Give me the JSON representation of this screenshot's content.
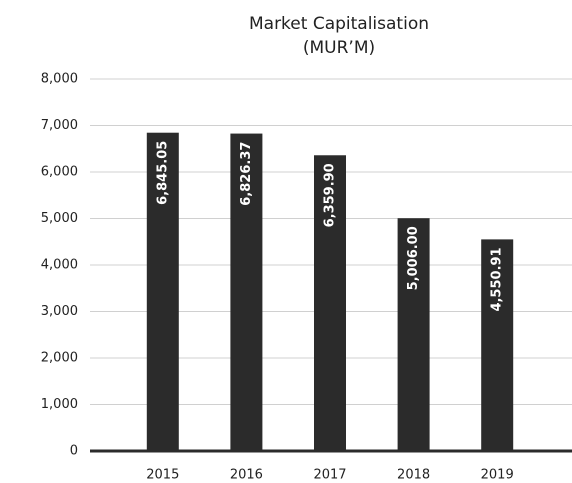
{
  "chart_data": {
    "type": "bar",
    "title": "Market Capitalisation",
    "subtitle": "(MUR’M)",
    "categories": [
      "2015",
      "2016",
      "2017",
      "2018",
      "2019"
    ],
    "values": [
      6845.05,
      6826.37,
      6359.9,
      5006.0,
      4550.91
    ],
    "value_labels": [
      "6,845.05",
      "6,826.37",
      "6,359.90",
      "5,006.00",
      "4,550.91"
    ],
    "color": "#2b2b2b",
    "ylim": [
      0,
      8000
    ],
    "yticks": [
      0,
      {
        "value": 1000,
        "label": "1,000"
      },
      {
        "value": 2000,
        "label": "2,000"
      },
      {
        "value": 3000,
        "label": "3,000"
      },
      {
        "value": 4000,
        "label": "4,000"
      },
      {
        "value": 5000,
        "label": "5,000"
      },
      {
        "value": 6000,
        "label": "6,000"
      },
      {
        "value": 7000,
        "label": "7,000"
      },
      {
        "value": 8000,
        "label": "8,000"
      }
    ],
    "grid": true
  }
}
